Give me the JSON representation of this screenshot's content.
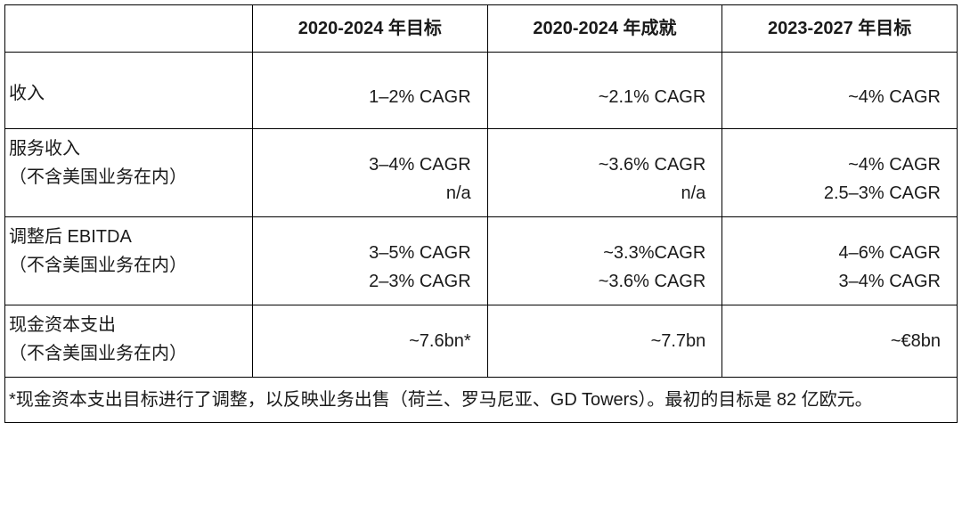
{
  "table": {
    "headers": {
      "blank": "",
      "col1": "2020-2024 年目标",
      "col2": "2020-2024 年成就",
      "col3": "2023-2027 年目标"
    },
    "rows": {
      "revenue": {
        "label_main": "收入",
        "c1_l1": "1–2% CAGR",
        "c2_l1": "~2.1% CAGR",
        "c3_l1": "~4% CAGR"
      },
      "service_revenue": {
        "label_main": "服务收入",
        "label_sub": "（不含美国业务在内）",
        "c1_l1": "3–4% CAGR",
        "c1_l2": "n/a",
        "c2_l1": "~3.6% CAGR",
        "c2_l2": "n/a",
        "c3_l1": "~4% CAGR",
        "c3_l2": "2.5–3% CAGR"
      },
      "adj_ebitda": {
        "label_main": "调整后 EBITDA",
        "label_sub": "（不含美国业务在内）",
        "c1_l1": "3–5% CAGR",
        "c1_l2": "2–3% CAGR",
        "c2_l1": "~3.3%CAGR",
        "c2_l2": "~3.6% CAGR",
        "c3_l1": "4–6% CAGR",
        "c3_l2": "3–4% CAGR"
      },
      "capex": {
        "label_main": "现金资本支出",
        "label_sub": "（不含美国业务在内）",
        "c1_l1": "~7.6bn*",
        "c2_l1": "~7.7bn",
        "c3_l1": "~€8bn"
      }
    },
    "footnote": "*现金资本支出目标进行了调整，以反映业务出售（荷兰、罗马尼亚、GD Towers）。最初的目标是 82 亿欧元。"
  }
}
